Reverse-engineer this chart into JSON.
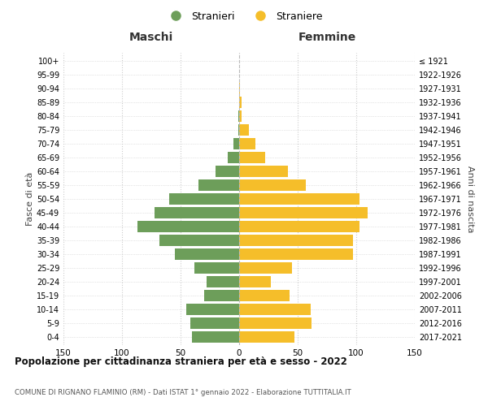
{
  "age_groups": [
    "0-4",
    "5-9",
    "10-14",
    "15-19",
    "20-24",
    "25-29",
    "30-34",
    "35-39",
    "40-44",
    "45-49",
    "50-54",
    "55-59",
    "60-64",
    "65-69",
    "70-74",
    "75-79",
    "80-84",
    "85-89",
    "90-94",
    "95-99",
    "100+"
  ],
  "birth_years": [
    "2017-2021",
    "2012-2016",
    "2007-2011",
    "2002-2006",
    "1997-2001",
    "1992-1996",
    "1987-1991",
    "1982-1986",
    "1977-1981",
    "1972-1976",
    "1967-1971",
    "1962-1966",
    "1957-1961",
    "1952-1956",
    "1947-1951",
    "1942-1946",
    "1937-1941",
    "1932-1936",
    "1927-1931",
    "1922-1926",
    "≤ 1921"
  ],
  "males": [
    40,
    42,
    45,
    30,
    28,
    38,
    55,
    68,
    87,
    72,
    60,
    35,
    20,
    10,
    5,
    1,
    1,
    0,
    0,
    0,
    0
  ],
  "females": [
    47,
    62,
    61,
    43,
    27,
    45,
    97,
    97,
    103,
    110,
    103,
    57,
    42,
    22,
    14,
    8,
    2,
    2,
    1,
    0,
    0
  ],
  "male_color": "#6d9e5a",
  "female_color": "#f5be2a",
  "background_color": "#ffffff",
  "grid_color": "#cccccc",
  "title": "Popolazione per cittadinanza straniera per età e sesso - 2022",
  "subtitle": "COMUNE DI RIGNANO FLAMINIO (RM) - Dati ISTAT 1° gennaio 2022 - Elaborazione TUTTITALIA.IT",
  "xlabel_left": "Maschi",
  "xlabel_right": "Femmine",
  "ylabel_left": "Fasce di età",
  "ylabel_right": "Anni di nascita",
  "legend_male": "Stranieri",
  "legend_female": "Straniere",
  "xlim": 150,
  "xticks": [
    -150,
    -100,
    -50,
    0,
    50,
    100,
    150
  ],
  "xticklabels": [
    "150",
    "100",
    "50",
    "0",
    "50",
    "100",
    "150"
  ]
}
